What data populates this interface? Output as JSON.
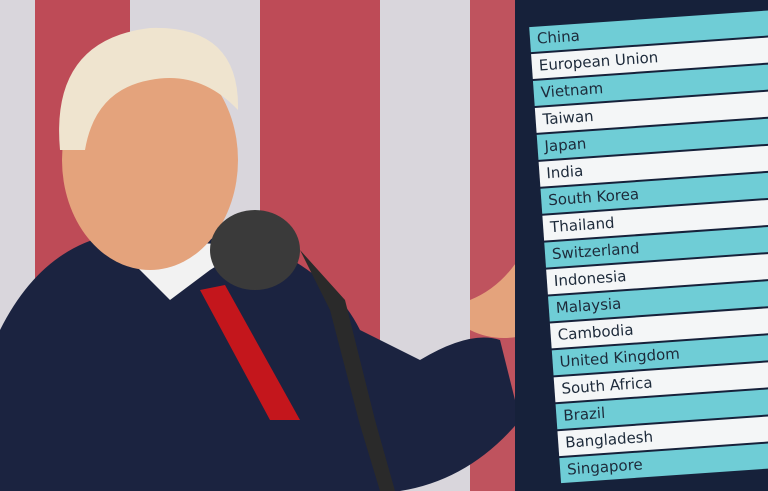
{
  "board": {
    "rows": [
      "China",
      "European Union",
      "Vietnam",
      "Taiwan",
      "Japan",
      "India",
      "South Korea",
      "Thailand",
      "Switzerland",
      "Indonesia",
      "Malaysia",
      "Cambodia",
      "United Kingdom",
      "South Africa",
      "Brazil",
      "Bangladesh",
      "Singapore"
    ]
  }
}
